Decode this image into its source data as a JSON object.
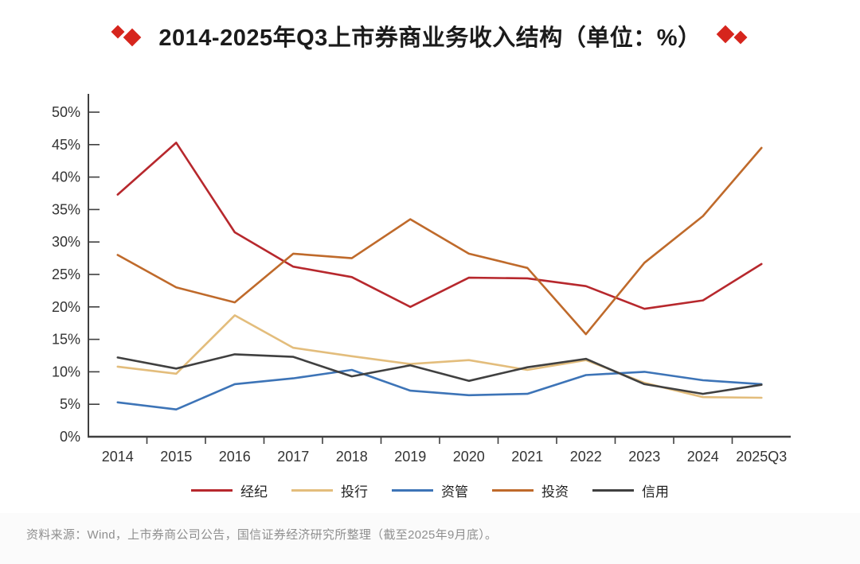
{
  "title": {
    "text": "2014-2025年Q3上市券商业务收入结构（单位：%）"
  },
  "icons": {
    "left_decoration": "double-diamond-icon",
    "right_decoration": "double-diamond-icon"
  },
  "colors": {
    "accent_red": "#d6251d",
    "axis": "#3f3f3f",
    "tick_label": "#333333",
    "title_text": "#1b1b1b",
    "source_text": "#8f8f8f"
  },
  "chart_data": {
    "type": "line",
    "title": "2014-2025年Q3上市券商业务收入结构（单位：%）",
    "categories": [
      "2014",
      "2015",
      "2016",
      "2017",
      "2018",
      "2019",
      "2020",
      "2021",
      "2022",
      "2023",
      "2024",
      "2025Q3"
    ],
    "series": [
      {
        "name": "经纪",
        "color": "#b7282d",
        "values": [
          37.3,
          45.3,
          31.5,
          26.2,
          24.6,
          20.0,
          24.5,
          24.4,
          23.2,
          19.7,
          21.0,
          26.6
        ]
      },
      {
        "name": "投行",
        "color": "#e3bd7c",
        "values": [
          10.8,
          9.7,
          18.7,
          13.7,
          12.4,
          11.2,
          11.8,
          10.3,
          11.8,
          8.3,
          6.1,
          6.0
        ]
      },
      {
        "name": "资管",
        "color": "#3d74b7",
        "values": [
          5.3,
          4.2,
          8.1,
          9.0,
          10.3,
          7.1,
          6.4,
          6.6,
          9.5,
          10.0,
          8.7,
          8.1
        ]
      },
      {
        "name": "投资",
        "color": "#bf6a2b",
        "values": [
          28.0,
          23.0,
          20.7,
          28.2,
          27.5,
          33.5,
          28.2,
          26.0,
          15.8,
          26.8,
          34.0,
          44.5
        ]
      },
      {
        "name": "信用",
        "color": "#404040",
        "values": [
          12.2,
          10.5,
          12.7,
          12.3,
          9.3,
          11.0,
          8.6,
          10.7,
          12.0,
          8.1,
          6.6,
          8.0
        ]
      }
    ],
    "ylim": [
      0,
      50
    ],
    "ytick_step": 5,
    "ytick_suffix": "%",
    "grid": false,
    "legend_position": "bottom"
  },
  "source": {
    "text": "资料来源：Wind，上市券商公司公告，国信证券经济研究所整理（截至2025年9月底）。"
  }
}
